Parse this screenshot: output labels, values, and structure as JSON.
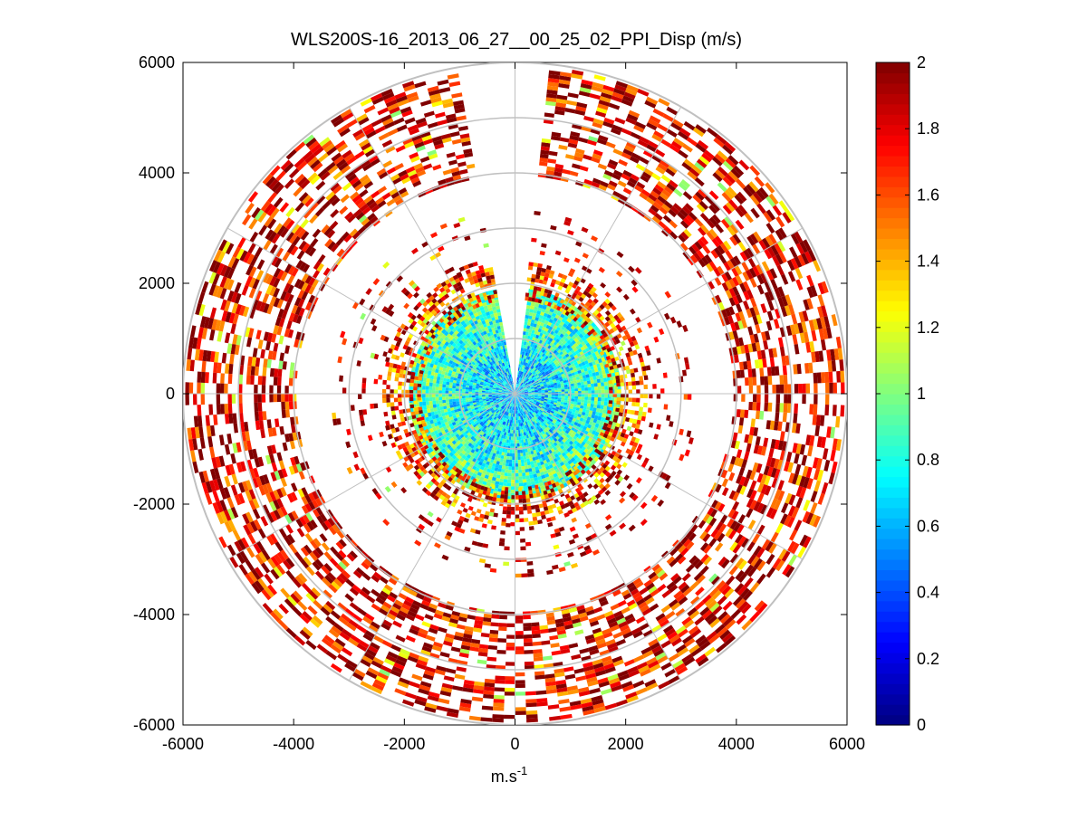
{
  "chart_data": {
    "type": "heatmap",
    "subtype": "polar-ppi",
    "title": "WLS200S-16_2013_06_27__00_25_02_PPI_Disp (m/s)",
    "xlabel": "m.s",
    "xlabel_sup": "-1",
    "ylabel": "",
    "xlim": [
      -6000,
      6000
    ],
    "ylim": [
      -6000,
      6000
    ],
    "xticks": [
      -6000,
      -4000,
      -2000,
      0,
      2000,
      4000,
      6000
    ],
    "yticks": [
      -6000,
      -4000,
      -2000,
      0,
      2000,
      4000,
      6000
    ],
    "xtick_labels": [
      "-6000",
      "-4000",
      "-2000",
      "0",
      "2000",
      "4000",
      "6000"
    ],
    "ytick_labels": [
      "-6000",
      "-4000",
      "-2000",
      "0",
      "2000",
      "4000",
      "6000"
    ],
    "polar_grid": {
      "rings": [
        1000,
        2000,
        3000,
        4000,
        5000,
        6000
      ],
      "spoke_angles_deg": [
        0,
        30,
        60,
        90,
        120,
        150,
        180,
        210,
        240,
        270,
        300,
        330
      ]
    },
    "colorbar": {
      "colormap": "jet",
      "range": [
        0,
        2
      ],
      "ticks": [
        0,
        0.2,
        0.4,
        0.6,
        0.8,
        1,
        1.2,
        1.4,
        1.6,
        1.8,
        2
      ],
      "tick_labels": [
        "0",
        "0.2",
        "0.4",
        "0.6",
        "0.8",
        "1",
        "1.2",
        "1.4",
        "1.6",
        "1.8",
        "2"
      ]
    },
    "range_bands": [
      {
        "r_min": 0,
        "r_max": 1900,
        "value_mean": 0.7,
        "value_spread": 0.3,
        "coverage": 1.0,
        "description": "dense near-range, values ~0.5-1.1"
      },
      {
        "r_min": 1700,
        "r_max": 2350,
        "value_mean": 1.7,
        "value_spread": 0.5,
        "coverage": 0.55
      },
      {
        "r_min": 2350,
        "r_max": 3300,
        "value_mean": 1.9,
        "value_spread": 0.3,
        "coverage": 0.12
      },
      {
        "r_min": 3950,
        "r_max": 5000,
        "value_mean": 1.85,
        "value_spread": 0.4,
        "coverage": 0.5
      },
      {
        "r_min": 5050,
        "r_max": 5950,
        "value_mean": 1.85,
        "value_spread": 0.45,
        "coverage": 0.5
      }
    ],
    "missing_sector_deg": [
      84,
      99
    ]
  }
}
